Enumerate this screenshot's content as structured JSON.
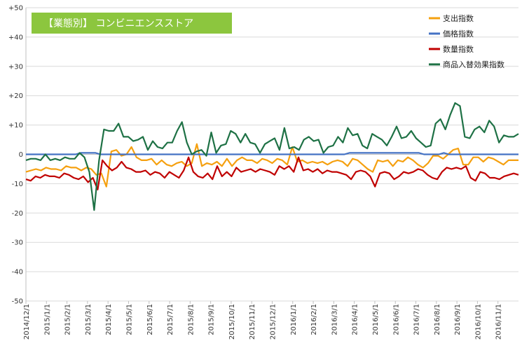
{
  "chart_data": {
    "type": "line",
    "title": "【業態別】 コンビニエンスストア",
    "title_bg": "#8cc63e",
    "ylim": [
      -50,
      50
    ],
    "y_ticks": [
      "+50",
      "+40",
      "+30",
      "+20",
      "+10",
      "0",
      "-10",
      "-20",
      "-30",
      "-40",
      "-50"
    ],
    "x_ticks": [
      "2014/12/1",
      "2015/1/1",
      "2015/2/1",
      "2015/3/1",
      "2015/4/1",
      "2015/5/1",
      "2015/6/1",
      "2015/7/1",
      "2015/8/1",
      "2015/9/1",
      "2015/10/1",
      "2015/11/1",
      "2015/12/1",
      "2016/1/1",
      "2016/2/1",
      "2016/3/1",
      "2016/4/1",
      "2016/5/1",
      "2016/6/1",
      "2016/7/1",
      "2016/8/1",
      "2016/9/1",
      "2016/10/1",
      "2016/11/1"
    ],
    "legend_position": "top-right",
    "grid": true,
    "series": [
      {
        "name": "支出指数",
        "color": "#f5a00f",
        "values": [
          -6,
          -5.5,
          -5,
          -5.5,
          -4.5,
          -5,
          -5,
          -5.5,
          -4,
          -4.5,
          -4.5,
          -5.5,
          -4.5,
          -5,
          -7,
          -6.5,
          -11,
          1,
          1.5,
          -0.5,
          0,
          2.5,
          -1,
          -2,
          -2,
          -1.5,
          -3.5,
          -2,
          -3.5,
          -4,
          -3,
          -2.5,
          -4,
          -3,
          3.5,
          -4,
          -3,
          -3.5,
          -2.5,
          -4,
          -1.5,
          -4,
          -2,
          -1,
          -2,
          -2,
          -3,
          -1.5,
          -2,
          -3,
          -1.5,
          -2,
          -3.5,
          2.5,
          -2.5,
          -2,
          -3,
          -2.5,
          -3,
          -2.5,
          -3.5,
          -2.5,
          -2,
          -2.5,
          -4,
          -1.5,
          -2,
          -3.5,
          -5,
          -6,
          -2,
          -2.5,
          -2,
          -4,
          -2,
          -2.5,
          -1,
          -2,
          -3.5,
          -4.5,
          -3,
          -0.5,
          -0.5,
          -1.5,
          0,
          1.5,
          2,
          -3.5,
          -3.5,
          -1,
          -1,
          -2.5,
          -1,
          -1.5,
          -2.5,
          -3.5,
          -2,
          -2,
          -2
        ]
      },
      {
        "name": "価格指数",
        "color": "#4472c4",
        "values": [
          0,
          0,
          0,
          0,
          0,
          0,
          0,
          0,
          0,
          0,
          0,
          0.5,
          0.5,
          0.5,
          0.5,
          0,
          0,
          0,
          0,
          0,
          0,
          0,
          0,
          0,
          0,
          0,
          0,
          0,
          0,
          0,
          0,
          0,
          0,
          0,
          0,
          0,
          0,
          0,
          0,
          0,
          0,
          0,
          0,
          0,
          0,
          0,
          0,
          0,
          0,
          0,
          0,
          0,
          0,
          0,
          0,
          0,
          0,
          0,
          0,
          0,
          0,
          0,
          0,
          0,
          0,
          0.5,
          0.5,
          0.5,
          0.5,
          0.5,
          0.5,
          0.5,
          0.5,
          0.5,
          0.5,
          0.5,
          0.5,
          0.5,
          0.5,
          0.5,
          0,
          0,
          0,
          0,
          0.5,
          0,
          0,
          0,
          0,
          0,
          0,
          0,
          0,
          0,
          0,
          0,
          0,
          0,
          0,
          0
        ]
      },
      {
        "name": "数量指数",
        "color": "#c00000",
        "values": [
          -8.5,
          -9,
          -7.5,
          -8,
          -7,
          -7.5,
          -7.5,
          -8,
          -6.5,
          -7,
          -8,
          -8.5,
          -7.5,
          -9.5,
          -8,
          -12,
          -2,
          -4,
          -5.5,
          -4.5,
          -2.5,
          -4.5,
          -5,
          -6,
          -6,
          -5.5,
          -7,
          -6,
          -6.5,
          -8,
          -6,
          -7,
          -8,
          -5.5,
          -1,
          -6,
          -7.5,
          -8,
          -6.5,
          -8.5,
          -4,
          -7.5,
          -6,
          -7.5,
          -4.5,
          -6,
          -5.5,
          -5,
          -6,
          -5,
          -5.5,
          -6,
          -7,
          -4,
          -5,
          -4,
          -6,
          -1,
          -5.5,
          -5,
          -6,
          -5,
          -6.5,
          -5.5,
          -6,
          -6,
          -6.5,
          -7,
          -8.5,
          -6,
          -5.5,
          -6,
          -7.5,
          -11,
          -6.5,
          -6,
          -6.5,
          -8.5,
          -7.5,
          -6,
          -6.5,
          -6,
          -5,
          -5.5,
          -7,
          -8,
          -8.5,
          -6,
          -4.5,
          -5,
          -4.5,
          -5,
          -4,
          -8,
          -9,
          -6,
          -6.5,
          -8,
          -8,
          -8.5,
          -7.5,
          -7,
          -6.5,
          -7
        ]
      },
      {
        "name": "商品入替効果指数",
        "color": "#1e7145",
        "values": [
          -2,
          -1.5,
          -1.5,
          -2,
          0,
          -2,
          -1.5,
          -2,
          -1,
          -1.5,
          -1.5,
          0.5,
          -1,
          -6,
          -19,
          -2,
          8.5,
          8,
          8,
          10.5,
          6,
          6,
          4.5,
          5,
          6,
          1.5,
          4.5,
          2.5,
          2,
          4,
          4,
          8,
          11,
          4,
          0,
          1,
          1.5,
          -0.5,
          7.5,
          0.5,
          3,
          3.5,
          8,
          7,
          4,
          7,
          4,
          3.5,
          0.5,
          3.5,
          4.5,
          5.5,
          1.5,
          9,
          2,
          2.5,
          1.5,
          5,
          6,
          4.5,
          5,
          0.5,
          2.5,
          3,
          6,
          4,
          9,
          6.5,
          7,
          3,
          2,
          7,
          6,
          5,
          3,
          6,
          9.5,
          5.5,
          6,
          8,
          5.5,
          4,
          2.5,
          3,
          10.5,
          12,
          8.5,
          13.5,
          17.5,
          16.5,
          6,
          5.5,
          8.5,
          9.5,
          7.5,
          11.5,
          9.5,
          4,
          6.5,
          6,
          6,
          7
        ]
      }
    ]
  }
}
